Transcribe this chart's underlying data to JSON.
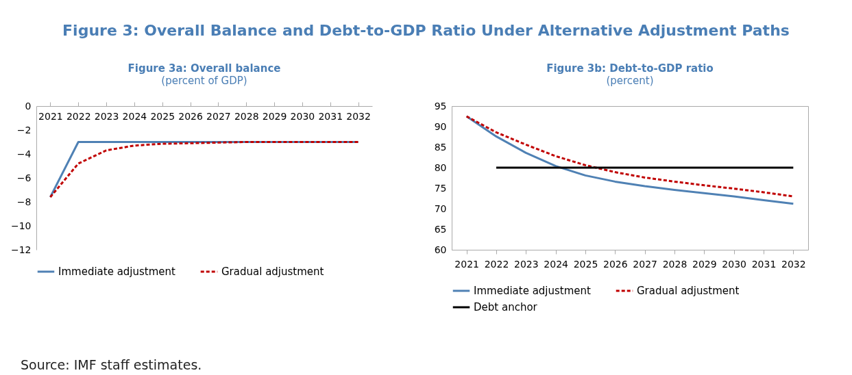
{
  "chart_data": [
    {
      "type": "line",
      "title": "Figure 3a: Overall balance",
      "subtitle": "(percent of GDP)",
      "annotations": [
        "Figure 3: Overall Balance and Debt-to-GDP Ratio Under Alternative Adjustment Paths"
      ],
      "categories": [
        "2021",
        "2022",
        "2023",
        "2024",
        "2025",
        "2026",
        "2027",
        "2028",
        "2029",
        "2030",
        "2031",
        "2032"
      ],
      "series": [
        {
          "name": "Immediate adjustment",
          "color": "#4f81b4",
          "line_style": "solid",
          "values": [
            -7.6,
            -3.0,
            -3.0,
            -3.0,
            -3.0,
            -3.0,
            -3.0,
            -3.0,
            -3.0,
            -3.0,
            -3.0,
            -3.0
          ]
        },
        {
          "name": "Gradual adjustment",
          "color": "#c00000",
          "line_style": "dashed",
          "values": [
            -7.6,
            -4.8,
            -3.7,
            -3.3,
            -3.15,
            -3.1,
            -3.05,
            -3.0,
            -3.0,
            -3.0,
            -3.0,
            -3.0
          ]
        }
      ],
      "ylim": [
        -12,
        0
      ],
      "yticks": [
        0,
        -2,
        -4,
        -6,
        -8,
        -10,
        -12
      ],
      "legend": "bottom"
    },
    {
      "type": "line",
      "title": "Figure 3b: Debt-to-GDP ratio",
      "subtitle": "(percent)",
      "annotations": [
        "Source: IMF staff estimates."
      ],
      "categories": [
        "2021",
        "2022",
        "2023",
        "2024",
        "2025",
        "2026",
        "2027",
        "2028",
        "2029",
        "2030",
        "2031",
        "2032"
      ],
      "series": [
        {
          "name": "Immediate adjustment",
          "color": "#4f81b4",
          "line_style": "solid",
          "values": [
            92.5,
            87.6,
            83.6,
            80.4,
            78.1,
            76.6,
            75.5,
            74.6,
            73.8,
            73.0,
            72.1,
            71.2
          ]
        },
        {
          "name": "Gradual adjustment",
          "color": "#c00000",
          "line_style": "dashed",
          "values": [
            92.5,
            88.6,
            85.6,
            82.8,
            80.6,
            78.9,
            77.6,
            76.6,
            75.7,
            74.9,
            74.0,
            73.0
          ]
        },
        {
          "name": "Debt anchor",
          "color": "#000000",
          "line_style": "solid",
          "values": [
            null,
            80,
            80,
            80,
            80,
            80,
            80,
            80,
            80,
            80,
            80,
            80
          ]
        }
      ],
      "ylim": [
        60,
        95
      ],
      "yticks": [
        60,
        65,
        70,
        75,
        80,
        85,
        90,
        95
      ],
      "legend": "bottom"
    }
  ]
}
